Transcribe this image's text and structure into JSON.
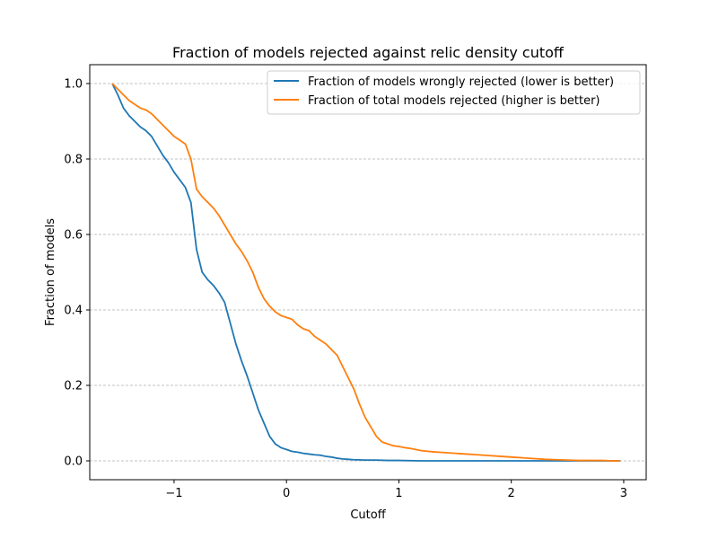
{
  "chart_data": {
    "type": "line",
    "title": "Fraction of models rejected against relic density cutoff",
    "xlabel": "Cutoff",
    "ylabel": "Fraction of models",
    "xlim": [
      -1.75,
      3.2
    ],
    "ylim": [
      -0.05,
      1.05
    ],
    "xticks": [
      -1,
      0,
      1,
      2,
      3
    ],
    "xtick_labels": [
      "−1",
      "0",
      "1",
      "2",
      "3"
    ],
    "yticks": [
      0.0,
      0.2,
      0.4,
      0.6,
      0.8,
      1.0
    ],
    "ytick_labels": [
      "0.0",
      "0.2",
      "0.4",
      "0.6",
      "0.8",
      "1.0"
    ],
    "grid": "horizontal dashed",
    "legend": "top-right",
    "series": [
      {
        "name": "Fraction of models wrongly rejected (lower is better)",
        "color": "#1f77b4",
        "x": [
          -1.55,
          -1.5,
          -1.45,
          -1.4,
          -1.35,
          -1.3,
          -1.25,
          -1.2,
          -1.15,
          -1.1,
          -1.05,
          -1.0,
          -0.95,
          -0.9,
          -0.85,
          -0.8,
          -0.75,
          -0.7,
          -0.65,
          -0.6,
          -0.55,
          -0.5,
          -0.45,
          -0.4,
          -0.35,
          -0.3,
          -0.25,
          -0.2,
          -0.15,
          -0.1,
          -0.05,
          0.0,
          0.05,
          0.1,
          0.15,
          0.2,
          0.25,
          0.3,
          0.35,
          0.4,
          0.45,
          0.5,
          0.55,
          0.6,
          0.7,
          0.8,
          0.9,
          1.0,
          1.2,
          1.5,
          2.0,
          2.5,
          2.97
        ],
        "y": [
          1.0,
          0.97,
          0.935,
          0.915,
          0.9,
          0.885,
          0.875,
          0.86,
          0.835,
          0.81,
          0.79,
          0.765,
          0.745,
          0.725,
          0.685,
          0.56,
          0.5,
          0.48,
          0.465,
          0.445,
          0.42,
          0.365,
          0.31,
          0.265,
          0.225,
          0.18,
          0.135,
          0.1,
          0.065,
          0.045,
          0.035,
          0.03,
          0.025,
          0.023,
          0.02,
          0.018,
          0.016,
          0.015,
          0.012,
          0.01,
          0.007,
          0.005,
          0.004,
          0.003,
          0.002,
          0.002,
          0.001,
          0.001,
          0.0,
          0.0,
          0.0,
          0.0,
          0.0
        ]
      },
      {
        "name": "Fraction of total models rejected (higher is better)",
        "color": "#ff7f0e",
        "x": [
          -1.55,
          -1.5,
          -1.45,
          -1.4,
          -1.35,
          -1.3,
          -1.25,
          -1.2,
          -1.15,
          -1.1,
          -1.05,
          -1.0,
          -0.95,
          -0.9,
          -0.85,
          -0.8,
          -0.75,
          -0.7,
          -0.65,
          -0.6,
          -0.55,
          -0.5,
          -0.45,
          -0.4,
          -0.35,
          -0.3,
          -0.25,
          -0.2,
          -0.15,
          -0.1,
          -0.05,
          0.0,
          0.05,
          0.1,
          0.15,
          0.2,
          0.25,
          0.3,
          0.35,
          0.4,
          0.45,
          0.5,
          0.55,
          0.6,
          0.65,
          0.7,
          0.75,
          0.8,
          0.85,
          0.9,
          0.95,
          1.0,
          1.05,
          1.1,
          1.15,
          1.2,
          1.3,
          1.4,
          1.5,
          1.6,
          1.7,
          1.8,
          1.9,
          2.0,
          2.1,
          2.2,
          2.3,
          2.4,
          2.5,
          2.6,
          2.7,
          2.8,
          2.9,
          2.97
        ],
        "y": [
          1.0,
          0.985,
          0.97,
          0.955,
          0.945,
          0.935,
          0.93,
          0.92,
          0.905,
          0.89,
          0.875,
          0.86,
          0.85,
          0.84,
          0.8,
          0.72,
          0.7,
          0.685,
          0.67,
          0.65,
          0.625,
          0.6,
          0.575,
          0.555,
          0.53,
          0.5,
          0.46,
          0.43,
          0.41,
          0.395,
          0.385,
          0.38,
          0.375,
          0.36,
          0.35,
          0.345,
          0.33,
          0.32,
          0.31,
          0.295,
          0.28,
          0.25,
          0.22,
          0.19,
          0.15,
          0.115,
          0.09,
          0.065,
          0.05,
          0.045,
          0.04,
          0.038,
          0.035,
          0.033,
          0.03,
          0.027,
          0.024,
          0.022,
          0.02,
          0.018,
          0.016,
          0.014,
          0.012,
          0.01,
          0.008,
          0.006,
          0.004,
          0.003,
          0.002,
          0.001,
          0.001,
          0.001,
          0.0,
          0.0
        ]
      }
    ]
  }
}
